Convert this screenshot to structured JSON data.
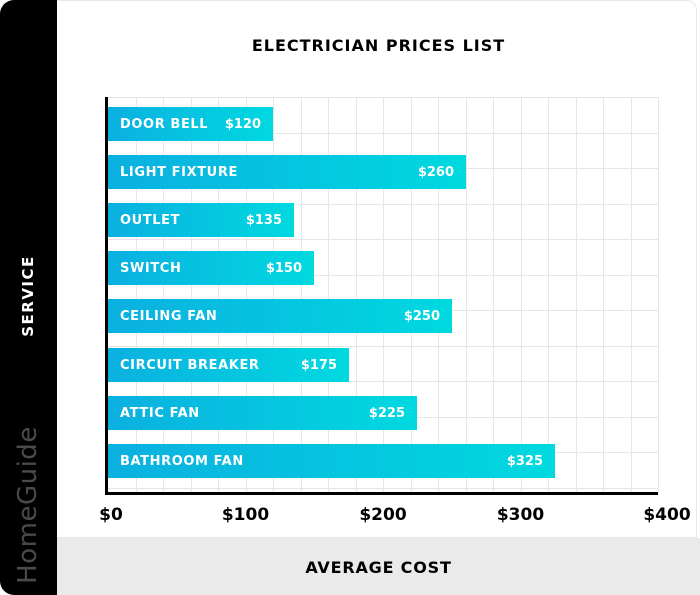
{
  "title": "ELECTRICIAN PRICES LIST",
  "ylabel": "SERVICE",
  "xlabel": "AVERAGE COST",
  "brand": "HomeGuide",
  "colors": {
    "bar_start": "#0bb0e0",
    "bar_end": "#00d9e0",
    "sidebar": "#000000",
    "bottom_band": "#eaeaea",
    "grid": "#e6e6e6"
  },
  "x_ticks": [
    "$0",
    "$100",
    "$200",
    "$300",
    "$400"
  ],
  "bars": [
    {
      "label": "DOOR BELL",
      "value_label": "$120",
      "value": 120
    },
    {
      "label": "LIGHT FIXTURE",
      "value_label": "$260",
      "value": 260
    },
    {
      "label": "OUTLET",
      "value_label": "$135",
      "value": 135
    },
    {
      "label": "SWITCH",
      "value_label": "$150",
      "value": 150
    },
    {
      "label": "CEILING FAN",
      "value_label": "$250",
      "value": 250
    },
    {
      "label": "CIRCUIT BREAKER",
      "value_label": "$175",
      "value": 175
    },
    {
      "label": "ATTIC FAN",
      "value_label": "$225",
      "value": 225
    },
    {
      "label": "BATHROOM FAN",
      "value_label": "$325",
      "value": 325
    }
  ],
  "chart_data": {
    "type": "bar",
    "orientation": "horizontal",
    "title": "ELECTRICIAN PRICES LIST",
    "xlabel": "AVERAGE COST",
    "ylabel": "SERVICE",
    "categories": [
      "DOOR BELL",
      "LIGHT FIXTURE",
      "OUTLET",
      "SWITCH",
      "CEILING FAN",
      "CIRCUIT BREAKER",
      "ATTIC FAN",
      "BATHROOM FAN"
    ],
    "values": [
      120,
      260,
      135,
      150,
      250,
      175,
      225,
      325
    ],
    "data_labels": [
      "$120",
      "$260",
      "$135",
      "$150",
      "$250",
      "$175",
      "$225",
      "$325"
    ],
    "xlim": [
      0,
      400
    ],
    "x_ticks": [
      0,
      100,
      200,
      300,
      400
    ],
    "x_tick_labels": [
      "$0",
      "$100",
      "$200",
      "$300",
      "$400"
    ],
    "grid": true,
    "legend": null
  }
}
